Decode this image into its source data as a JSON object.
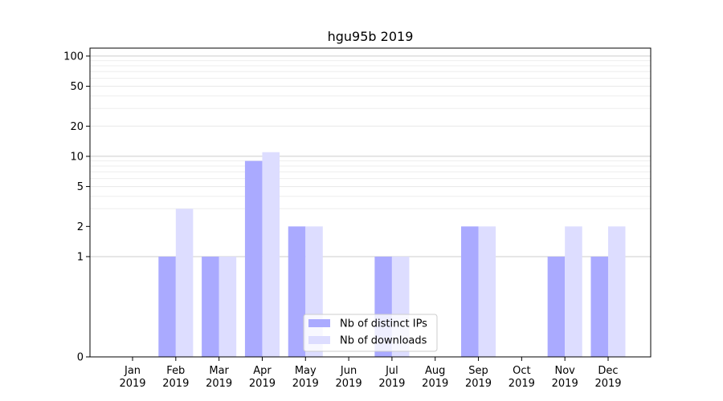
{
  "chart_data": {
    "type": "bar",
    "title": "hgu95b 2019",
    "xlabel": "",
    "ylabel": "",
    "y_scale": "symlog",
    "ylim": [
      0,
      120
    ],
    "y_ticks": [
      0,
      1,
      2,
      5,
      10,
      20,
      50,
      100
    ],
    "grid": "horizontal",
    "legend_position": "bottom-center",
    "categories": [
      "Jan\n2019",
      "Feb\n2019",
      "Mar\n2019",
      "Apr\n2019",
      "May\n2019",
      "Jun\n2019",
      "Jul\n2019",
      "Aug\n2019",
      "Sep\n2019",
      "Oct\n2019",
      "Nov\n2019",
      "Dec\n2019"
    ],
    "category_month": [
      "Jan",
      "Feb",
      "Mar",
      "Apr",
      "May",
      "Jun",
      "Jul",
      "Aug",
      "Sep",
      "Oct",
      "Nov",
      "Dec"
    ],
    "category_year": [
      "2019",
      "2019",
      "2019",
      "2019",
      "2019",
      "2019",
      "2019",
      "2019",
      "2019",
      "2019",
      "2019",
      "2019"
    ],
    "series": [
      {
        "name": "Nb of distinct IPs",
        "color": "#aaaaff",
        "values": [
          0,
          1,
          1,
          9,
          2,
          0,
          1,
          0,
          2,
          0,
          1,
          1
        ]
      },
      {
        "name": "Nb of downloads",
        "color": "#ddddff",
        "values": [
          0,
          3,
          1,
          11,
          2,
          0,
          1,
          0,
          2,
          0,
          2,
          2
        ]
      }
    ]
  }
}
